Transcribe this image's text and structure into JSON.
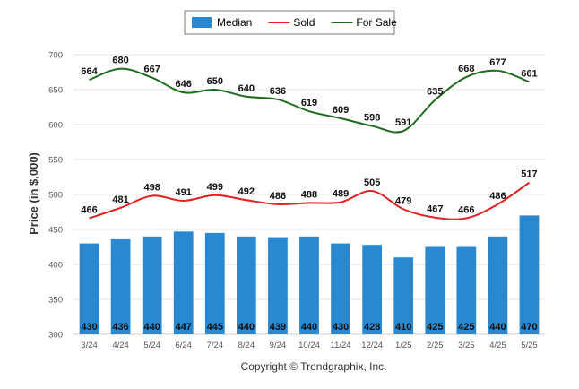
{
  "chart_data": {
    "type": "bar",
    "categories": [
      "3/24",
      "4/24",
      "5/24",
      "6/24",
      "7/24",
      "8/24",
      "9/24",
      "10/24",
      "11/24",
      "12/24",
      "1/25",
      "2/25",
      "3/25",
      "4/25",
      "5/25"
    ],
    "series": [
      {
        "name": "Median",
        "type": "bar",
        "color": "#2a88d0",
        "values": [
          430,
          436,
          440,
          447,
          445,
          440,
          439,
          440,
          430,
          428,
          410,
          425,
          425,
          440,
          470
        ]
      },
      {
        "name": "Sold",
        "type": "line",
        "color": "#e02020",
        "values": [
          466,
          481,
          498,
          491,
          499,
          492,
          486,
          488,
          489,
          505,
          479,
          467,
          466,
          486,
          517
        ]
      },
      {
        "name": "For Sale",
        "type": "line",
        "color": "#1e6b1e",
        "values": [
          664,
          680,
          667,
          646,
          650,
          640,
          636,
          619,
          609,
          598,
          591,
          635,
          668,
          677,
          661
        ]
      }
    ],
    "ylabel": "Price (in $,000)",
    "ylim": [
      300,
      700
    ],
    "yticks": [
      300,
      350,
      400,
      450,
      500,
      550,
      600,
      650,
      700
    ],
    "grid": true,
    "legend_position": "top-center"
  },
  "footer": "Copyright © Trendgraphix, Inc."
}
